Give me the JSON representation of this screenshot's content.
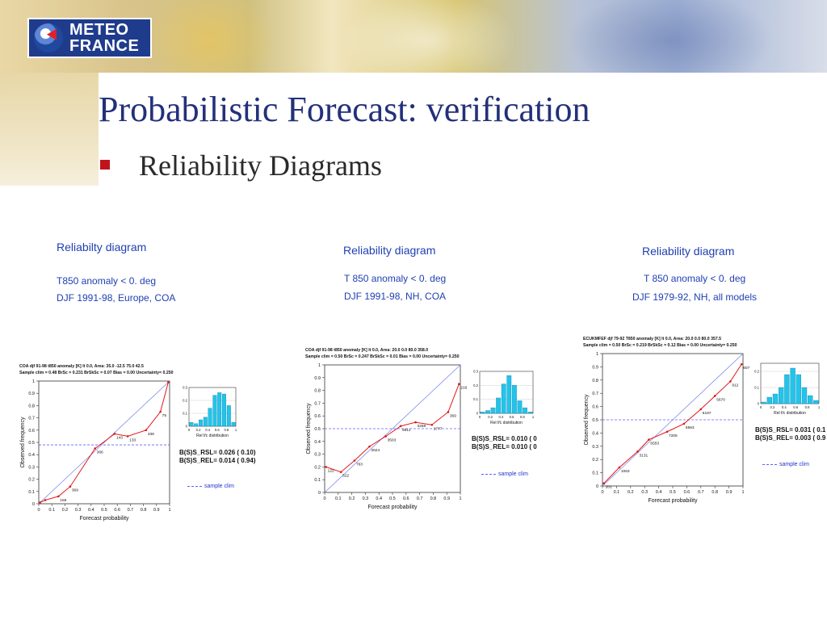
{
  "header": {
    "logo": {
      "line1": "METEO",
      "line2": "FRANCE",
      "icon": "globe-arrow-icon"
    },
    "title": "Probabilistic Forecast: verification",
    "bullet": "Reliability Diagrams",
    "bullet_color": "#c0141d",
    "title_color": "#23307a"
  },
  "captions": [
    {
      "title": "Reliabilty diagram",
      "line1": "T850 anomaly < 0. deg",
      "line2": "DJF 1991-98, Europe, COA"
    },
    {
      "title": "Reliability diagram",
      "line1": "T 850 anomaly < 0. deg",
      "line2": "DJF 1991-98, NH, COA"
    },
    {
      "title": "Reliability diagram",
      "line1": "T 850 anomaly < 0. deg",
      "line2": "DJF 1979-92, NH, all models"
    }
  ],
  "chart_data": [
    {
      "type": "line",
      "header1": "COA          djf 91-98   t850 anomaly [K]        lt   0.0, Area:  35.0 -12.5  75.0  42.5",
      "header2": "Sample clim = 0.48   BrSc = 0.231   BrSkSc =  0.07   Bias =  0.00   Uncertainty= 0.250",
      "xlabel": "Forecast probability",
      "ylabel": "Observed frequency",
      "xlim": [
        0,
        1
      ],
      "ylim": [
        0,
        1
      ],
      "xticks": [
        "0",
        "0.1",
        "0.2",
        "0.3",
        "0.4",
        "0.5",
        "0.6",
        "0.7",
        "0.8",
        "0.9",
        "1"
      ],
      "yticks": [
        "0",
        "0.1",
        "0.2",
        "0.3",
        "0.4",
        "0.5",
        "0.6",
        "0.7",
        "0.8",
        "0.9",
        "1"
      ],
      "sample_clim": 0.48,
      "series": [
        {
          "x": [
            0.01,
            0.05,
            0.15,
            0.24,
            0.43,
            0.58,
            0.68,
            0.82,
            0.93,
            0.99
          ],
          "y": [
            0.01,
            0.03,
            0.06,
            0.14,
            0.45,
            0.57,
            0.55,
            0.6,
            0.75,
            0.99
          ]
        }
      ],
      "point_labels": [
        "",
        "",
        "156",
        "369",
        "366",
        "143",
        "133",
        "339",
        "75",
        ""
      ],
      "hist": {
        "xlabel": "Rel f/c distribution",
        "yticks": [
          "0",
          "0.1",
          "0.2",
          "0.3"
        ],
        "xticks": [
          "0",
          "0.2",
          "0.4",
          "0.6",
          "0.8",
          "1"
        ],
        "ymax": 0.3,
        "values": [
          0.03,
          0.02,
          0.05,
          0.07,
          0.14,
          0.24,
          0.26,
          0.25,
          0.16,
          0.03
        ]
      },
      "stats": [
        "B(S)S_RSL= 0.026 (  0.10)",
        "B(S)S_REL= 0.014 (  0.94)"
      ],
      "legend": "sample clim"
    },
    {
      "type": "line",
      "header1": "COA        djf 91-98   t850 anomaly [K]        lt   0.0, Area:  20.0   0.0  80.0 358.0",
      "header2": "Sample clim = 0.50   BrSc = 0.247   BrSkSc =  0.01   Bias =  0.00   Uncertainty= 0.250",
      "xlabel": "Forecast probability",
      "ylabel": "Observed frequency",
      "xlim": [
        0,
        1
      ],
      "ylim": [
        0,
        1
      ],
      "xticks": [
        "0",
        "0.1",
        "0.2",
        "0.3",
        "0.4",
        "0.5",
        "0.6",
        "0.7",
        "0.8",
        "0.9",
        "1"
      ],
      "yticks": [
        "0",
        "0.1",
        "0.2",
        "0.3",
        "0.4",
        "0.5",
        "0.6",
        "0.7",
        "0.8",
        "0.9",
        "1"
      ],
      "sample_clim": 0.5,
      "series": [
        {
          "x": [
            0.01,
            0.12,
            0.22,
            0.33,
            0.45,
            0.56,
            0.67,
            0.79,
            0.91,
            0.99
          ],
          "y": [
            0.2,
            0.16,
            0.25,
            0.36,
            0.44,
            0.52,
            0.55,
            0.53,
            0.63,
            0.85
          ]
        }
      ],
      "point_labels": [
        "122",
        "522",
        "763",
        "2624",
        "3503",
        "5911",
        "3258",
        "1777",
        "369",
        "216"
      ],
      "hist": {
        "xlabel": "Rel f/c distribution",
        "yticks": [
          "0",
          "0.1",
          "0.2",
          "0.3"
        ],
        "xticks": [
          "0",
          "0.2",
          "0.4",
          "0.6",
          "0.8",
          "1"
        ],
        "ymax": 0.3,
        "values": [
          0.01,
          0.02,
          0.04,
          0.11,
          0.21,
          0.27,
          0.2,
          0.09,
          0.04,
          0.01
        ]
      },
      "stats": [
        "B(S)S_RSL= 0.010 (  0",
        "B(S)S_REL= 0.010 (  0"
      ],
      "legend": "sample clim"
    },
    {
      "type": "line",
      "header1": "ECUKMFEF djf 79-92   T850 anomaly [K]        lt   0.0, Area: 20.0   0.0  80.0 357.5",
      "header2": "Sample clim = 0.50   BrSc = 0.219   BrSkSc =  0.12   Bias =  0.00   Uncertainty= 0.250",
      "xlabel": "Forecast probability",
      "ylabel": "Observed frequency",
      "xlim": [
        0,
        1
      ],
      "ylim": [
        0,
        1
      ],
      "xticks": [
        "0",
        "0.1",
        "0.2",
        "0.3",
        "0.4",
        "0.5",
        "0.6",
        "0.7",
        "0.8",
        "0.9",
        "1"
      ],
      "yticks": [
        "0",
        "0.1",
        "0.2",
        "0.3",
        "0.4",
        "0.5",
        "0.6",
        "0.7",
        "0.8",
        "0.9",
        "1"
      ],
      "sample_clim": 0.5,
      "series": [
        {
          "x": [
            0.01,
            0.12,
            0.25,
            0.33,
            0.46,
            0.58,
            0.7,
            0.8,
            0.91,
            0.99
          ],
          "y": [
            0.02,
            0.14,
            0.26,
            0.35,
            0.41,
            0.47,
            0.58,
            0.68,
            0.79,
            0.92
          ]
        }
      ],
      "point_labels": [
        "201",
        "1063",
        "3131",
        "6553",
        "7205",
        "6563",
        "6197",
        "5670",
        "912",
        "607"
      ],
      "hist": {
        "xlabel": "Rel f/c distribution",
        "yticks": [
          "0",
          "0.1",
          "0.2"
        ],
        "xticks": [
          "0",
          "0.2",
          "0.4",
          "0.6",
          "0.8",
          "1"
        ],
        "ymax": 0.25,
        "values": [
          0.01,
          0.04,
          0.06,
          0.1,
          0.18,
          0.22,
          0.18,
          0.1,
          0.05,
          0.02
        ]
      },
      "stats": [
        "B(S)S_RSL= 0.031 (  0.1",
        "B(S)S_REL= 0.003 (  0.9"
      ],
      "legend": "sample clim"
    }
  ]
}
